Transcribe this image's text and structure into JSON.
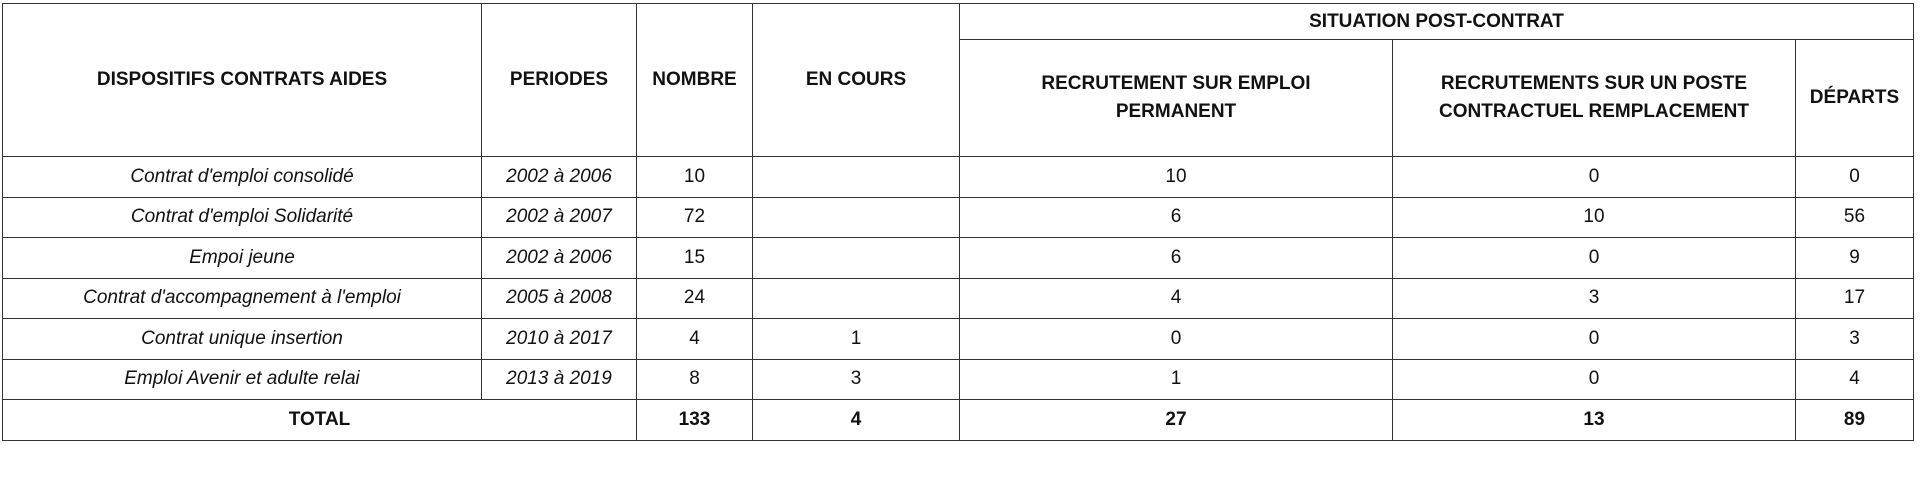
{
  "headers": {
    "dispositifs": "DISPOSITIFS CONTRATS AIDES",
    "periodes": "PERIODES",
    "nombre": "NOMBRE",
    "en_cours": "EN COURS",
    "situation": "SITUATION POST-CONTRAT",
    "permanent": "RECRUTEMENT SUR  EMPLOI PERMANENT",
    "contractuel": "RECRUTEMENTS SUR UN POSTE CONTRACTUEL REMPLACEMENT",
    "departs": "DÉPARTS"
  },
  "rows": [
    {
      "dispositif": "Contrat d'emploi consolidé",
      "periode": "2002 à 2006",
      "nombre": "10",
      "en_cours": "",
      "permanent": "10",
      "contractuel": "0",
      "departs": "0"
    },
    {
      "dispositif": "Contrat d'emploi Solidarité",
      "periode": "2002 à 2007",
      "nombre": "72",
      "en_cours": "",
      "permanent": "6",
      "contractuel": "10",
      "departs": "56"
    },
    {
      "dispositif": "Empoi jeune",
      "periode": "2002 à 2006",
      "nombre": "15",
      "en_cours": "",
      "permanent": "6",
      "contractuel": "0",
      "departs": "9"
    },
    {
      "dispositif": "Contrat d'accompagnement à l'emploi",
      "periode": "2005 à 2008",
      "nombre": "24",
      "en_cours": "",
      "permanent": "4",
      "contractuel": "3",
      "departs": "17"
    },
    {
      "dispositif": "Contrat unique insertion",
      "periode": "2010 à 2017",
      "nombre": "4",
      "en_cours": "1",
      "permanent": "0",
      "contractuel": "0",
      "departs": "3"
    },
    {
      "dispositif": "Emploi Avenir et adulte relai",
      "periode": "2013 à 2019",
      "nombre": "8",
      "en_cours": "3",
      "permanent": "1",
      "contractuel": "0",
      "departs": "4"
    }
  ],
  "total": {
    "label": "TOTAL",
    "nombre": "133",
    "en_cours": "4",
    "permanent": "27",
    "contractuel": "13",
    "departs": "89"
  }
}
